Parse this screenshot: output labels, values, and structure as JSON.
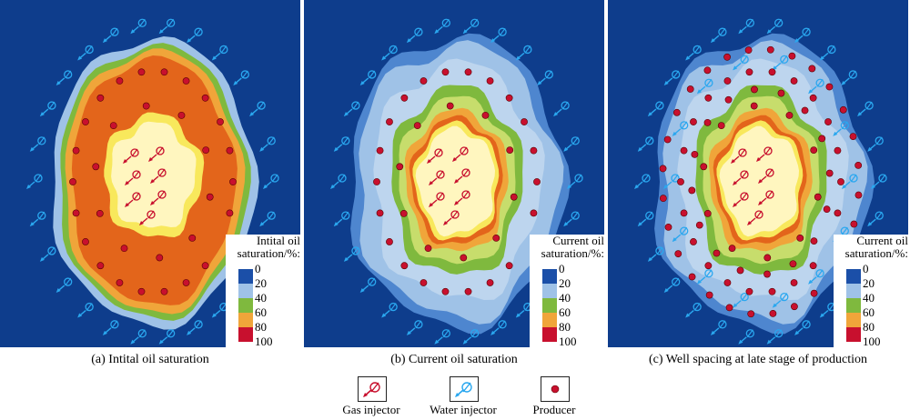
{
  "colors": {
    "background": "#0e3d8c",
    "sat_0_20": "#9fc2e7",
    "sat_20_40": "#2f7bd6",
    "sat_40_60": "#7fb93e",
    "sat_60_80": "#f0a53a",
    "sat_80_100": "#e3651b",
    "core": "#fff6bf",
    "core_edge": "#f8e85c",
    "producer": "#c8102e",
    "gas_injector": "#c8102e",
    "water_injector": "#2aa7ef"
  },
  "panels": [
    {
      "caption": "(a) Intital oil saturation",
      "scale_title_line1": "Intital oil",
      "scale_title_line2": "saturation/%:",
      "stage": "initial"
    },
    {
      "caption": "(b) Current oil saturation",
      "scale_title_line1": "Current oil",
      "scale_title_line2": "saturation/%:",
      "stage": "current"
    },
    {
      "caption": "(c) Well spacing at late stage of production",
      "scale_title_line1": "Current oil",
      "scale_title_line2": "saturation/%:",
      "stage": "late"
    }
  ],
  "scale_ticks": [
    "0",
    "20",
    "40",
    "60",
    "80",
    "100"
  ],
  "scale_colors": [
    "#1b4fa8",
    "#9fc2e7",
    "#7fb93e",
    "#f0a53a",
    "#c8102e"
  ],
  "legend": [
    {
      "label": "Gas injector",
      "icon": "gas-injector-icon"
    },
    {
      "label": "Water injector",
      "icon": "water-injector-icon"
    },
    {
      "label": "Producer",
      "icon": "producer-icon"
    }
  ]
}
